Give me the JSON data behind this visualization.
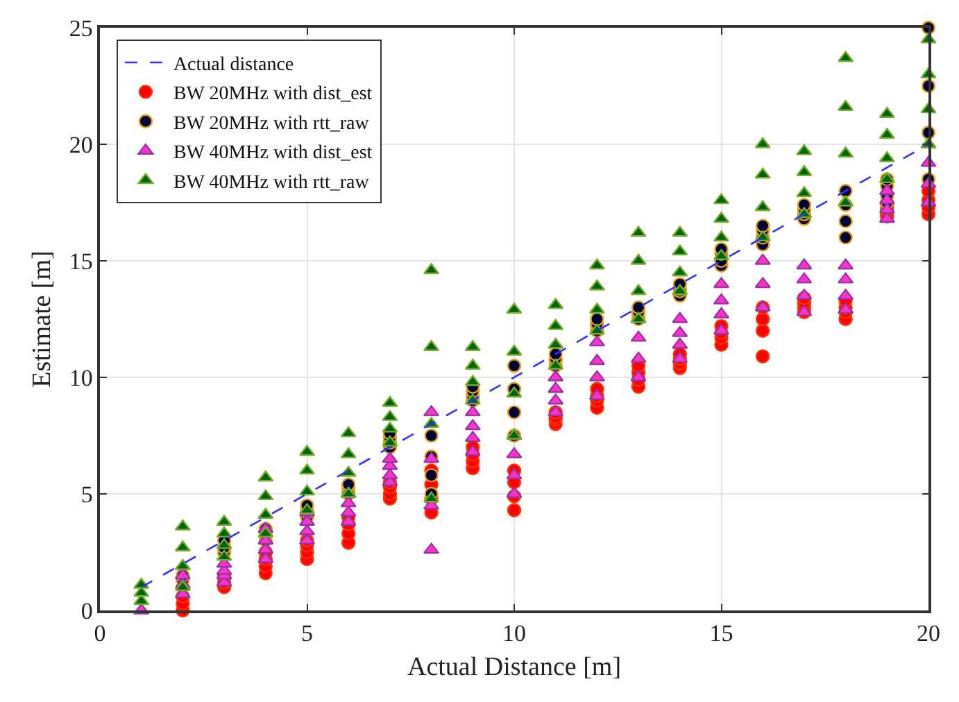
{
  "chart_data": {
    "type": "scatter",
    "xlabel": "Actual Distance [m]",
    "ylabel": "Estimate [m]",
    "xlim": [
      0,
      20
    ],
    "xticks": [
      0,
      5,
      10,
      15,
      20
    ],
    "ylim": [
      0,
      25
    ],
    "yticks": [
      0,
      5,
      10,
      15,
      20,
      25
    ],
    "grid": true,
    "legend": "top left",
    "x": [
      1,
      1,
      1,
      1,
      2,
      2,
      2,
      2,
      3,
      3,
      3,
      3,
      4,
      4,
      4,
      4,
      5,
      5,
      5,
      5,
      6,
      6,
      6,
      6,
      7,
      7,
      7,
      7,
      8,
      8,
      8,
      8,
      9,
      9,
      9,
      9,
      10,
      10,
      10,
      10,
      11,
      11,
      11,
      11,
      12,
      12,
      12,
      12,
      13,
      13,
      13,
      13,
      14,
      14,
      14,
      14,
      15,
      15,
      15,
      15,
      16,
      16,
      16,
      16,
      17,
      17,
      17,
      17,
      18,
      18,
      18,
      18,
      19,
      19,
      19,
      19,
      20,
      20,
      20,
      20
    ],
    "series": [
      {
        "name": "Actual distance",
        "type": "line",
        "line_style": "dashed",
        "marker": "none",
        "color": "#3333ff",
        "x": [
          1,
          20
        ],
        "values": [
          1,
          20
        ]
      },
      {
        "name": "BW 20MHz with dist_est",
        "marker": "circle",
        "color": "#ff0000",
        "values": [
          null,
          null,
          null,
          null,
          0,
          0.3,
          0.6,
          null,
          1.0,
          1.2,
          null,
          1.5,
          1.6,
          1.9,
          2.2,
          2.5,
          2.2,
          2.5,
          2.8,
          3.0,
          2.9,
          3.3,
          3.7,
          4.0,
          4.8,
          5.0,
          5.3,
          5.5,
          4.2,
          4.8,
          5.4,
          6.0,
          6.1,
          6.4,
          6.7,
          7.0,
          4.3,
          4.9,
          5.5,
          6.0,
          8.0,
          8.2,
          8.3,
          8.5,
          8.7,
          9.0,
          9.2,
          9.5,
          9.6,
          9.9,
          10.2,
          10.5,
          10.4,
          10.6,
          10.8,
          11.0,
          11.4,
          11.7,
          11.9,
          12.2,
          10.9,
          12.0,
          12.5,
          13.0,
          12.8,
          13.0,
          13.2,
          13.4,
          12.5,
          12.8,
          13.0,
          13.3,
          16.9,
          17.0,
          17.2,
          17.4,
          17.0,
          17.3,
          17.6,
          18.0
        ]
      },
      {
        "name": "BW 20MHz with rtt_raw",
        "marker": "circle",
        "color": "#000033",
        "values": [
          null,
          null,
          null,
          null,
          1.0,
          1.3,
          1.5,
          null,
          2.5,
          2.7,
          null,
          3.0,
          3.0,
          3.2,
          3.3,
          3.5,
          4.0,
          4.2,
          4.3,
          4.5,
          5.0,
          5.1,
          5.3,
          5.4,
          7.0,
          7.2,
          7.4,
          7.6,
          5.0,
          5.8,
          6.6,
          7.5,
          9.0,
          9.2,
          9.4,
          9.6,
          7.5,
          8.5,
          9.5,
          10.5,
          10.5,
          10.7,
          10.8,
          11.0,
          12.0,
          12.2,
          12.3,
          12.5,
          12.5,
          12.7,
          12.8,
          13.0,
          13.5,
          13.7,
          13.8,
          14.0,
          14.8,
          15.0,
          15.3,
          15.5,
          15.7,
          16.0,
          16.3,
          16.5,
          16.8,
          17.0,
          17.2,
          17.4,
          16.0,
          16.7,
          17.4,
          18.0,
          17.5,
          17.8,
          18.2,
          18.5,
          18.5,
          20.5,
          22.5,
          25.0
        ]
      },
      {
        "name": "BW 40MHz with dist_est",
        "marker": "triangle",
        "color": "#ff33cc",
        "values": [
          0,
          null,
          null,
          null,
          0.7,
          1.1,
          1.5,
          1.9,
          1.2,
          1.5,
          1.7,
          2.0,
          2.2,
          2.6,
          3.0,
          3.5,
          3.0,
          3.4,
          3.8,
          4.2,
          3.8,
          4.2,
          4.6,
          5.0,
          5.5,
          5.8,
          6.2,
          6.5,
          2.6,
          4.5,
          6.5,
          8.5,
          6.8,
          7.4,
          7.9,
          8.5,
          5.0,
          5.8,
          6.7,
          7.5,
          8.5,
          9.0,
          9.5,
          10.0,
          9.2,
          10.0,
          10.7,
          11.5,
          10.0,
          10.8,
          11.7,
          12.5,
          10.8,
          11.4,
          11.9,
          12.5,
          12.0,
          12.7,
          13.3,
          14.0,
          13.0,
          14.0,
          15.0,
          16.0,
          12.8,
          13.5,
          14.2,
          14.8,
          12.9,
          13.5,
          14.2,
          14.8,
          16.8,
          17.2,
          17.6,
          18.0,
          17.5,
          18.3,
          19.2,
          20.0
        ]
      },
      {
        "name": "BW 40MHz with rtt_raw",
        "marker": "triangle",
        "color": "#006400",
        "values": [
          null,
          0.4,
          0.75,
          1.1,
          1.0,
          1.9,
          2.7,
          3.6,
          2.3,
          2.8,
          3.3,
          3.8,
          3.3,
          4.1,
          4.9,
          5.7,
          4.3,
          5.1,
          6.0,
          6.8,
          5.0,
          5.9,
          6.7,
          7.6,
          7.2,
          7.8,
          8.3,
          8.9,
          4.8,
          8.0,
          11.3,
          14.6,
          9.0,
          9.8,
          10.5,
          11.3,
          7.5,
          9.3,
          11.1,
          12.9,
          10.5,
          11.4,
          12.2,
          13.1,
          12.0,
          12.9,
          13.9,
          14.8,
          12.5,
          13.7,
          15.0,
          16.2,
          13.7,
          14.5,
          15.4,
          16.2,
          15.2,
          16.0,
          16.8,
          17.6,
          16.0,
          17.3,
          18.7,
          20.0,
          17.0,
          17.9,
          18.8,
          19.7,
          17.5,
          19.6,
          21.6,
          23.7,
          18.5,
          19.4,
          20.4,
          21.3,
          20.0,
          21.5,
          23.0,
          24.5
        ]
      }
    ]
  }
}
